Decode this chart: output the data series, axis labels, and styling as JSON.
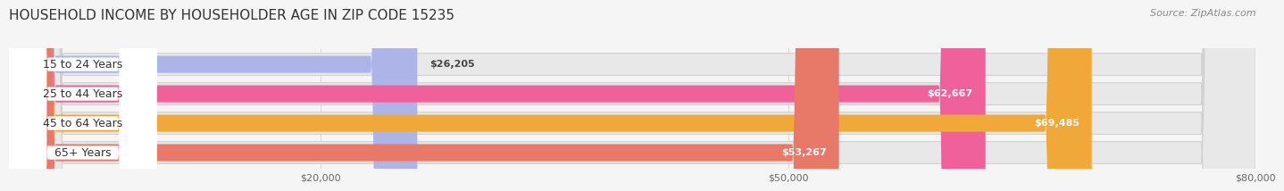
{
  "title": "HOUSEHOLD INCOME BY HOUSEHOLDER AGE IN ZIP CODE 15235",
  "source": "Source: ZipAtlas.com",
  "categories": [
    "15 to 24 Years",
    "25 to 44 Years",
    "45 to 64 Years",
    "65+ Years"
  ],
  "values": [
    26205,
    62667,
    69485,
    53267
  ],
  "bar_colors": [
    "#adb5e8",
    "#f0609a",
    "#f0a838",
    "#e87868"
  ],
  "xlim": [
    0,
    80000
  ],
  "xticks": [
    20000,
    50000,
    80000
  ],
  "xtick_labels": [
    "$20,000",
    "$50,000",
    "$80,000"
  ],
  "value_labels": [
    "$26,205",
    "$62,667",
    "$69,485",
    "$53,267"
  ],
  "title_fontsize": 11,
  "source_fontsize": 8,
  "label_fontsize": 9,
  "tick_fontsize": 8,
  "value_fontsize": 8,
  "background_color": "#f5f5f5",
  "bg_bar_color": "#e8e8e8",
  "bg_bar_edge_color": "#d0d0d0"
}
